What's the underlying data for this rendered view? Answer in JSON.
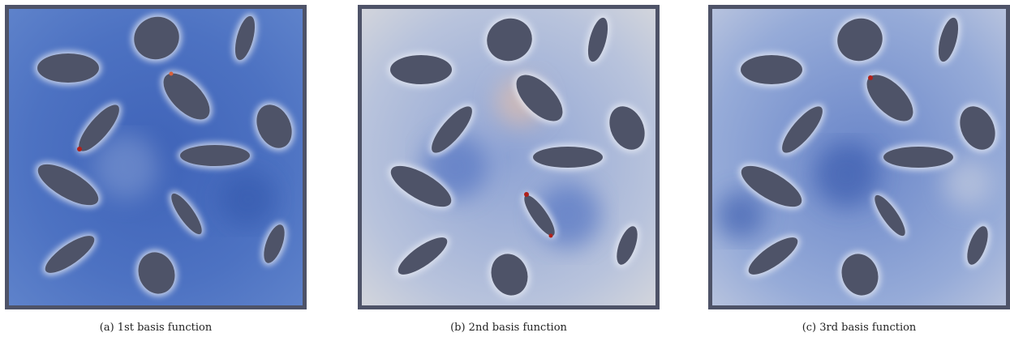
{
  "panels": [
    {
      "caption": "(a) 1st basis function"
    },
    {
      "caption": "(b) 2nd basis function"
    },
    {
      "caption": "(c) 3rd basis function"
    }
  ]
}
